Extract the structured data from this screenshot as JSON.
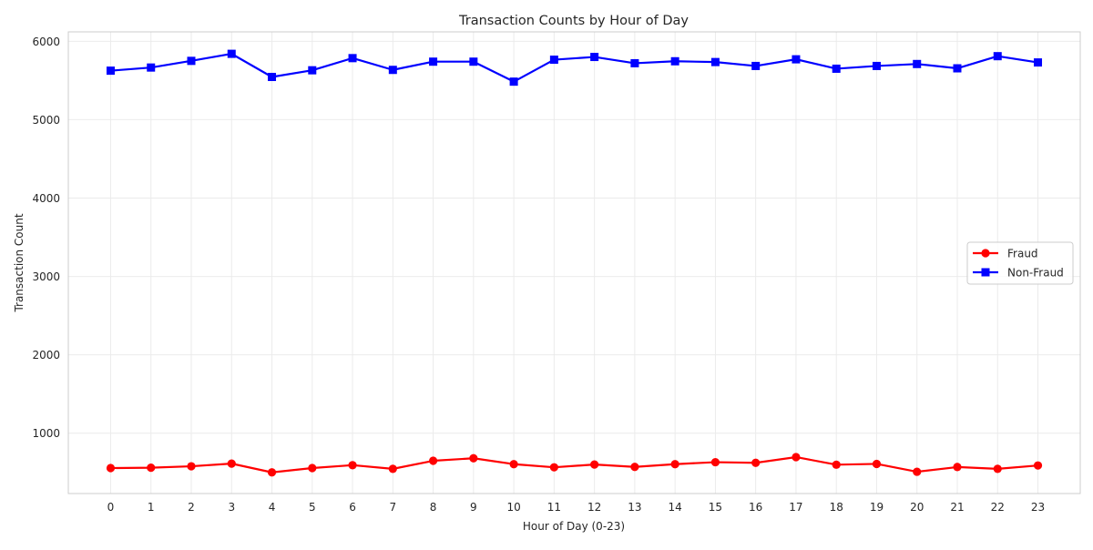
{
  "chart_data": {
    "type": "line",
    "title": "Transaction Counts by Hour of Day",
    "xlabel": "Hour of Day (0-23)",
    "ylabel": "Transaction Count",
    "x": [
      0,
      1,
      2,
      3,
      4,
      5,
      6,
      7,
      8,
      9,
      10,
      11,
      12,
      13,
      14,
      15,
      16,
      17,
      18,
      19,
      20,
      21,
      22,
      23
    ],
    "xlim": [
      -1.05,
      24.05
    ],
    "ylim": [
      230,
      6120
    ],
    "yticks": [
      1000,
      2000,
      3000,
      4000,
      5000,
      6000
    ],
    "grid": true,
    "legend_position": "center-right",
    "series": [
      {
        "name": "Fraud",
        "color": "#ff0000",
        "marker": "circle",
        "values": [
          555,
          560,
          578,
          612,
          500,
          555,
          592,
          545,
          648,
          680,
          605,
          565,
          600,
          570,
          605,
          630,
          622,
          695,
          598,
          608,
          508,
          568,
          545,
          588
        ]
      },
      {
        "name": "Non-Fraud",
        "color": "#0000ff",
        "marker": "square",
        "values": [
          5625,
          5665,
          5750,
          5840,
          5545,
          5630,
          5785,
          5635,
          5740,
          5740,
          5485,
          5765,
          5800,
          5720,
          5745,
          5735,
          5685,
          5770,
          5650,
          5685,
          5710,
          5655,
          5810,
          5730
        ]
      }
    ]
  }
}
